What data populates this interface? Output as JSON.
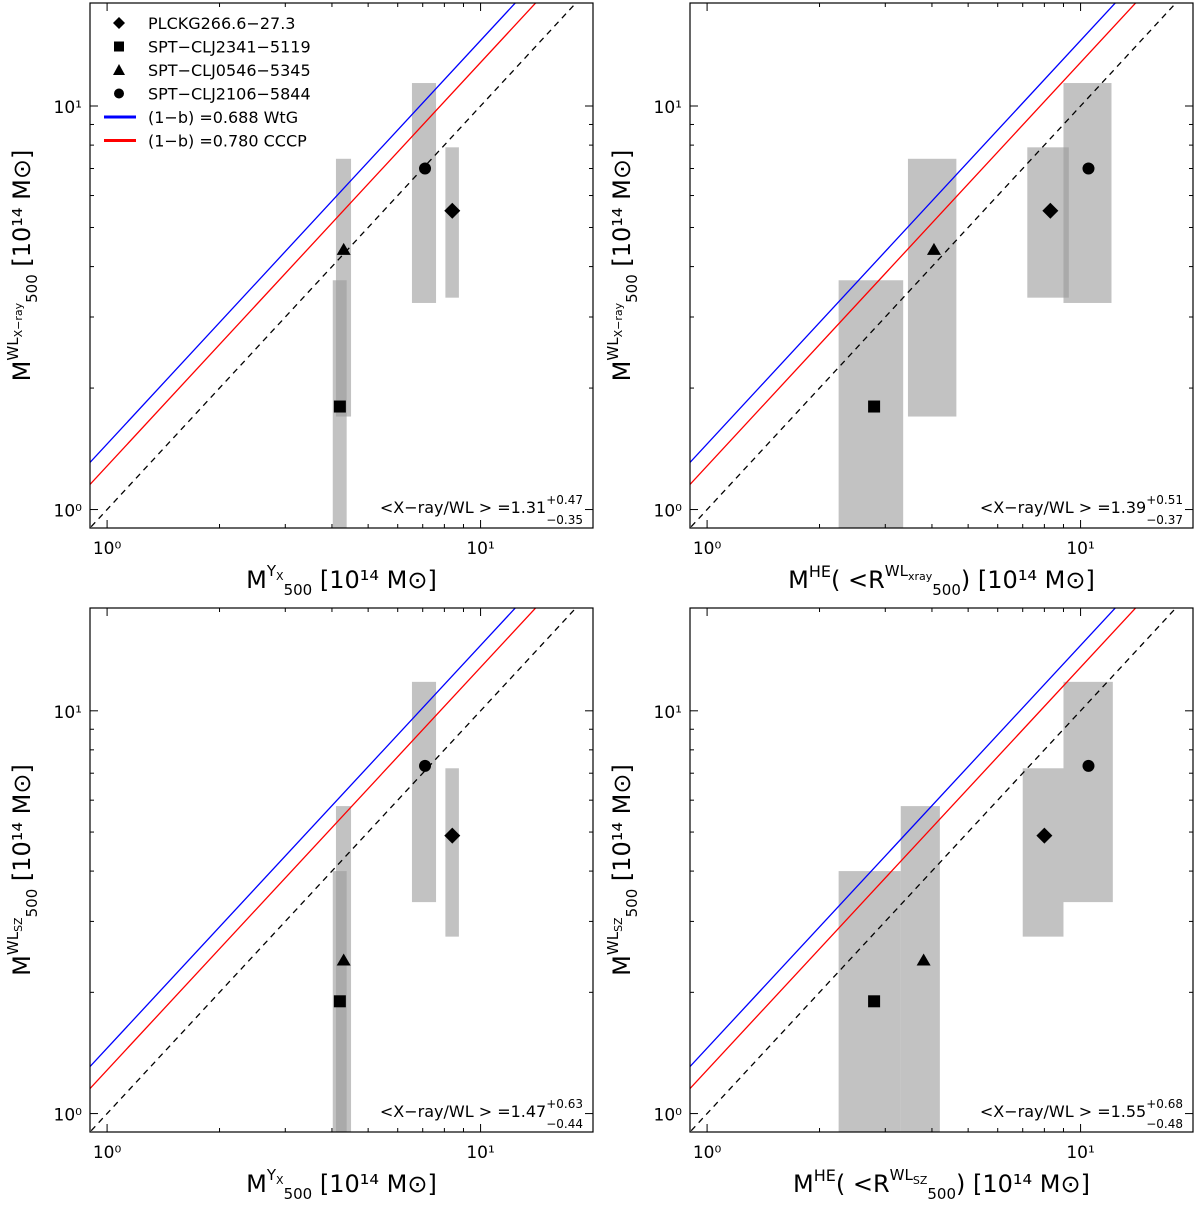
{
  "figure": {
    "legend": {
      "placement": "top-left",
      "entries": [
        {
          "marker": "diamond",
          "label": "PLCKG266.6−27.3"
        },
        {
          "marker": "square",
          "label": "SPT−CLJ2341−5119"
        },
        {
          "marker": "triangle",
          "label": "SPT−CLJ0546−5345"
        },
        {
          "marker": "circle",
          "label": "SPT−CLJ2106−5844"
        },
        {
          "marker": "line",
          "color": "#0000ff",
          "label": "(1−b) =0.688   WtG"
        },
        {
          "marker": "line",
          "color": "#ff0000",
          "label": "(1−b) =0.780   CCCP"
        }
      ]
    },
    "colors": {
      "wtg": "#0000ff",
      "cccp": "#ff0000",
      "identity": "#000000",
      "error_box": "#999999"
    }
  },
  "chart_data": [
    {
      "type": "scatter",
      "log_scale": true,
      "xlim": [
        0.9,
        20
      ],
      "ylim": [
        0.9,
        18
      ],
      "x_ticks": [
        "10⁰",
        "10¹"
      ],
      "y_ticks": [
        "10⁰",
        "10¹"
      ],
      "xlabel": {
        "main": "M",
        "sub": "500",
        "sup": "Y",
        "supsub": "X",
        "unit": "[10¹⁴ M⊙]"
      },
      "ylabel": {
        "main": "M",
        "sub": "500",
        "sup": "WL",
        "supsub": "X−ray",
        "unit": "[10¹⁴ M⊙]"
      },
      "ratio": {
        "prefix": "<X−ray/WL > =",
        "value": "1.31",
        "plus": "+0.47",
        "minus": "−0.35"
      },
      "relations": [
        {
          "name": "WtG",
          "slope": 0.688
        },
        {
          "name": "CCCP",
          "slope": 0.78
        },
        {
          "name": "identity",
          "slope": 1.0
        }
      ],
      "points": [
        {
          "cluster": "PLCKG266.6−27.3",
          "marker": "diamond",
          "x": 8.4,
          "y": 5.5,
          "xerr": [
            8.05,
            8.75
          ],
          "yerr": [
            3.35,
            7.9
          ]
        },
        {
          "cluster": "SPT−CLJ2341−5119",
          "marker": "square",
          "x": 4.2,
          "y": 1.8,
          "xerr": [
            4.02,
            4.38
          ],
          "yerr": [
            0.5,
            3.7
          ]
        },
        {
          "cluster": "SPT−CLJ0546−5345",
          "marker": "triangle",
          "x": 4.3,
          "y": 4.4,
          "xerr": [
            4.1,
            4.5
          ],
          "yerr": [
            1.7,
            7.4
          ]
        },
        {
          "cluster": "SPT−CLJ2106−5844",
          "marker": "circle",
          "x": 7.1,
          "y": 7.0,
          "xerr": [
            6.55,
            7.6
          ],
          "yerr": [
            3.25,
            11.4
          ]
        }
      ]
    },
    {
      "type": "scatter",
      "log_scale": true,
      "xlim": [
        0.9,
        20
      ],
      "ylim": [
        0.9,
        18
      ],
      "x_ticks": [
        "10⁰",
        "10¹"
      ],
      "y_ticks": [
        "10⁰",
        "10¹"
      ],
      "xlabel": {
        "main": "M",
        "sup": "HE",
        "open": "( <R",
        "sub": "500",
        "sup2": "WL",
        "supsub": "xray",
        "close": ")",
        "unit": "[10¹⁴ M⊙]"
      },
      "ylabel": {
        "main": "M",
        "sub": "500",
        "sup": "WL",
        "supsub": "X−ray",
        "unit": "[10¹⁴ M⊙]"
      },
      "ratio": {
        "prefix": "<X−ray/WL > =",
        "value": "1.39",
        "plus": "+0.51",
        "minus": "−0.37"
      },
      "relations": [
        {
          "name": "WtG",
          "slope": 0.688
        },
        {
          "name": "CCCP",
          "slope": 0.78
        },
        {
          "name": "identity",
          "slope": 1.0
        }
      ],
      "points": [
        {
          "cluster": "PLCKG266.6−27.3",
          "marker": "diamond",
          "x": 8.3,
          "y": 5.5,
          "xerr": [
            7.2,
            9.3
          ],
          "yerr": [
            3.35,
            7.9
          ]
        },
        {
          "cluster": "SPT−CLJ2341−5119",
          "marker": "square",
          "x": 2.8,
          "y": 1.8,
          "xerr": [
            2.25,
            3.35
          ],
          "yerr": [
            0.5,
            3.7
          ]
        },
        {
          "cluster": "SPT−CLJ0546−5345",
          "marker": "triangle",
          "x": 4.05,
          "y": 4.4,
          "xerr": [
            3.45,
            4.65
          ],
          "yerr": [
            1.7,
            7.4
          ]
        },
        {
          "cluster": "SPT−CLJ2106−5844",
          "marker": "circle",
          "x": 10.5,
          "y": 7.0,
          "xerr": [
            9.0,
            12.1
          ],
          "yerr": [
            3.25,
            11.4
          ]
        }
      ]
    },
    {
      "type": "scatter",
      "log_scale": true,
      "xlim": [
        0.9,
        20
      ],
      "ylim": [
        0.9,
        18
      ],
      "x_ticks": [
        "10⁰",
        "10¹"
      ],
      "y_ticks": [
        "10⁰",
        "10¹"
      ],
      "xlabel": {
        "main": "M",
        "sub": "500",
        "sup": "Y",
        "supsub": "X",
        "unit": "[10¹⁴ M⊙]"
      },
      "ylabel": {
        "main": "M",
        "sub": "500",
        "sup": "WL",
        "supsub": "SZ",
        "unit": "[10¹⁴ M⊙]"
      },
      "ratio": {
        "prefix": "<X−ray/WL > =",
        "value": "1.47",
        "plus": "+0.63",
        "minus": "−0.44"
      },
      "relations": [
        {
          "name": "WtG",
          "slope": 0.688
        },
        {
          "name": "CCCP",
          "slope": 0.78
        },
        {
          "name": "identity",
          "slope": 1.0
        }
      ],
      "points": [
        {
          "cluster": "PLCKG266.6−27.3",
          "marker": "diamond",
          "x": 8.4,
          "y": 4.9,
          "xerr": [
            8.05,
            8.75
          ],
          "yerr": [
            2.75,
            7.2
          ]
        },
        {
          "cluster": "SPT−CLJ2341−5119",
          "marker": "square",
          "x": 4.2,
          "y": 1.9,
          "xerr": [
            4.02,
            4.38
          ],
          "yerr": [
            0.5,
            4.0
          ]
        },
        {
          "cluster": "SPT−CLJ0546−5345",
          "marker": "triangle",
          "x": 4.3,
          "y": 2.4,
          "xerr": [
            4.1,
            4.5
          ],
          "yerr": [
            0.5,
            5.8
          ]
        },
        {
          "cluster": "SPT−CLJ2106−5844",
          "marker": "circle",
          "x": 7.1,
          "y": 7.3,
          "xerr": [
            6.55,
            7.6
          ],
          "yerr": [
            3.35,
            11.8
          ]
        }
      ]
    },
    {
      "type": "scatter",
      "log_scale": true,
      "xlim": [
        0.9,
        20
      ],
      "ylim": [
        0.9,
        18
      ],
      "x_ticks": [
        "10⁰",
        "10¹"
      ],
      "y_ticks": [
        "10⁰",
        "10¹"
      ],
      "xlabel": {
        "main": "M",
        "sup": "HE",
        "open": "( <R",
        "sub": "500",
        "sup2": "WL",
        "supsub": "SZ",
        "close": ")",
        "unit": "[10¹⁴ M⊙]"
      },
      "ylabel": {
        "main": "M",
        "sub": "500",
        "sup": "WL",
        "supsub": "SZ",
        "unit": "[10¹⁴ M⊙]"
      },
      "ratio": {
        "prefix": "<X−ray/WL > =",
        "value": "1.55",
        "plus": "+0.68",
        "minus": "−0.48"
      },
      "relations": [
        {
          "name": "WtG",
          "slope": 0.688
        },
        {
          "name": "CCCP",
          "slope": 0.78
        },
        {
          "name": "identity",
          "slope": 1.0
        }
      ],
      "points": [
        {
          "cluster": "PLCKG266.6−27.3",
          "marker": "diamond",
          "x": 8.0,
          "y": 4.9,
          "xerr": [
            7.0,
            9.0
          ],
          "yerr": [
            2.75,
            7.2
          ]
        },
        {
          "cluster": "SPT−CLJ2341−5119",
          "marker": "square",
          "x": 2.8,
          "y": 1.9,
          "xerr": [
            2.25,
            3.3
          ],
          "yerr": [
            0.5,
            4.0
          ]
        },
        {
          "cluster": "SPT−CLJ0546−5345",
          "marker": "triangle",
          "x": 3.8,
          "y": 2.4,
          "xerr": [
            3.3,
            4.2
          ],
          "yerr": [
            0.5,
            5.8
          ]
        },
        {
          "cluster": "SPT−CLJ2106−5844",
          "marker": "circle",
          "x": 10.5,
          "y": 7.3,
          "xerr": [
            9.0,
            12.2
          ],
          "yerr": [
            3.35,
            11.8
          ]
        }
      ]
    }
  ]
}
